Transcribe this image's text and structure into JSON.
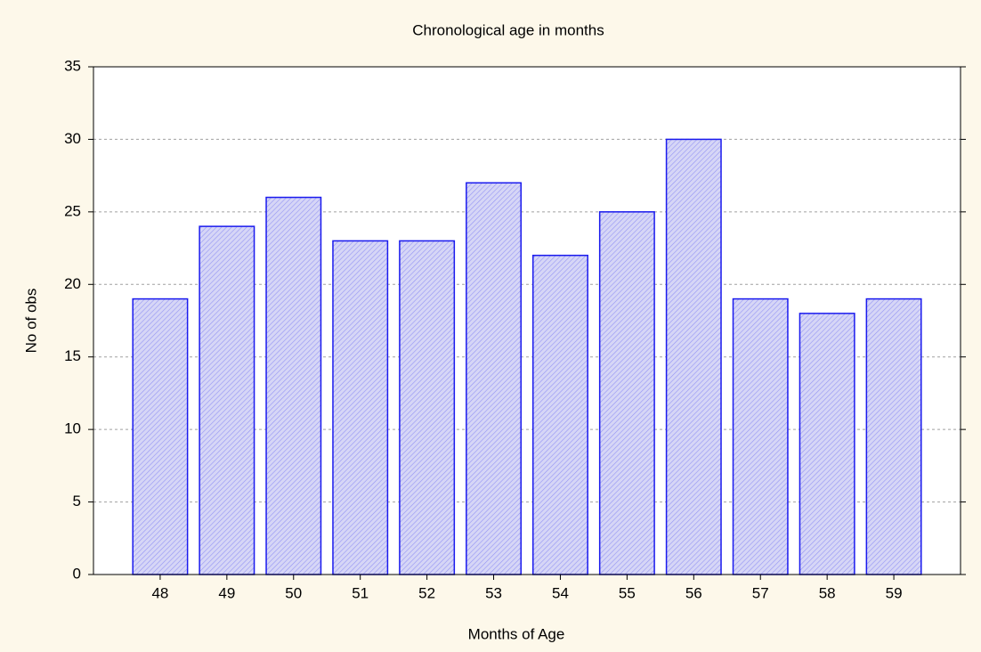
{
  "chart_data": {
    "type": "bar",
    "title": "Chronological age in months",
    "x_label": "Months of Age",
    "y_label": "No of obs",
    "categories": [
      "48",
      "49",
      "50",
      "51",
      "52",
      "53",
      "54",
      "55",
      "56",
      "57",
      "58",
      "59"
    ],
    "values": [
      19,
      24,
      26,
      23,
      23,
      27,
      22,
      25,
      30,
      19,
      18,
      19
    ],
    "color": "#1a1aee",
    "ylim": [
      0,
      35
    ],
    "yticks": [
      0,
      5,
      10,
      15,
      20,
      25,
      30,
      35
    ],
    "grid": true
  }
}
